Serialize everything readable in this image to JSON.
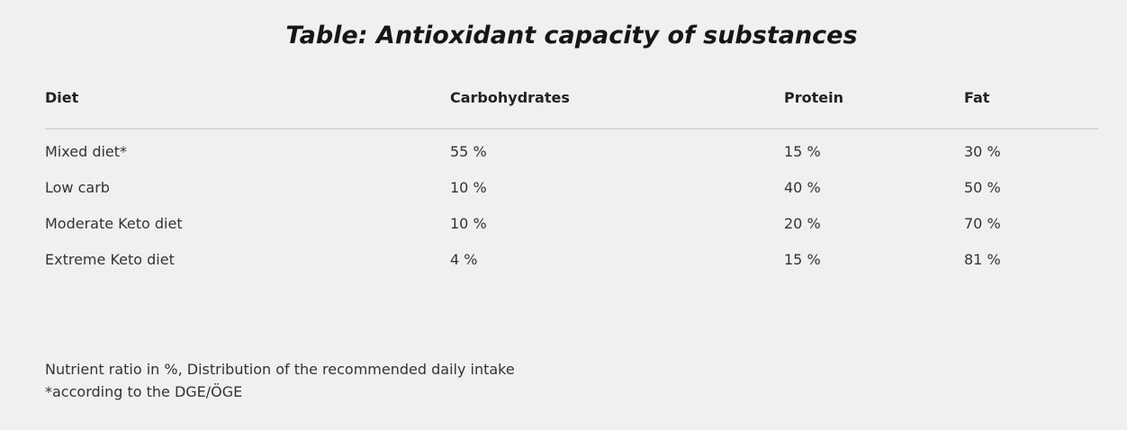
{
  "title": "Table: Antioxidant capacity of substances",
  "table": {
    "header": [
      "Diet",
      "Carbohydrates",
      "Protein",
      "Fat"
    ],
    "rows": [
      [
        "Mixed diet*",
        "55 %",
        "15 %",
        "30 %"
      ],
      [
        "Low carb",
        "10 %",
        "40 %",
        "50 %"
      ],
      [
        "Moderate Keto diet",
        "10 %",
        "20 %",
        "70 %"
      ],
      [
        "Extreme Keto diet",
        "4 %",
        "15 %",
        "81 %"
      ]
    ]
  },
  "notes": [
    "Nutrient ratio in %, Distribution of the recommended daily intake",
    "*according to the DGE/ÖGE"
  ]
}
